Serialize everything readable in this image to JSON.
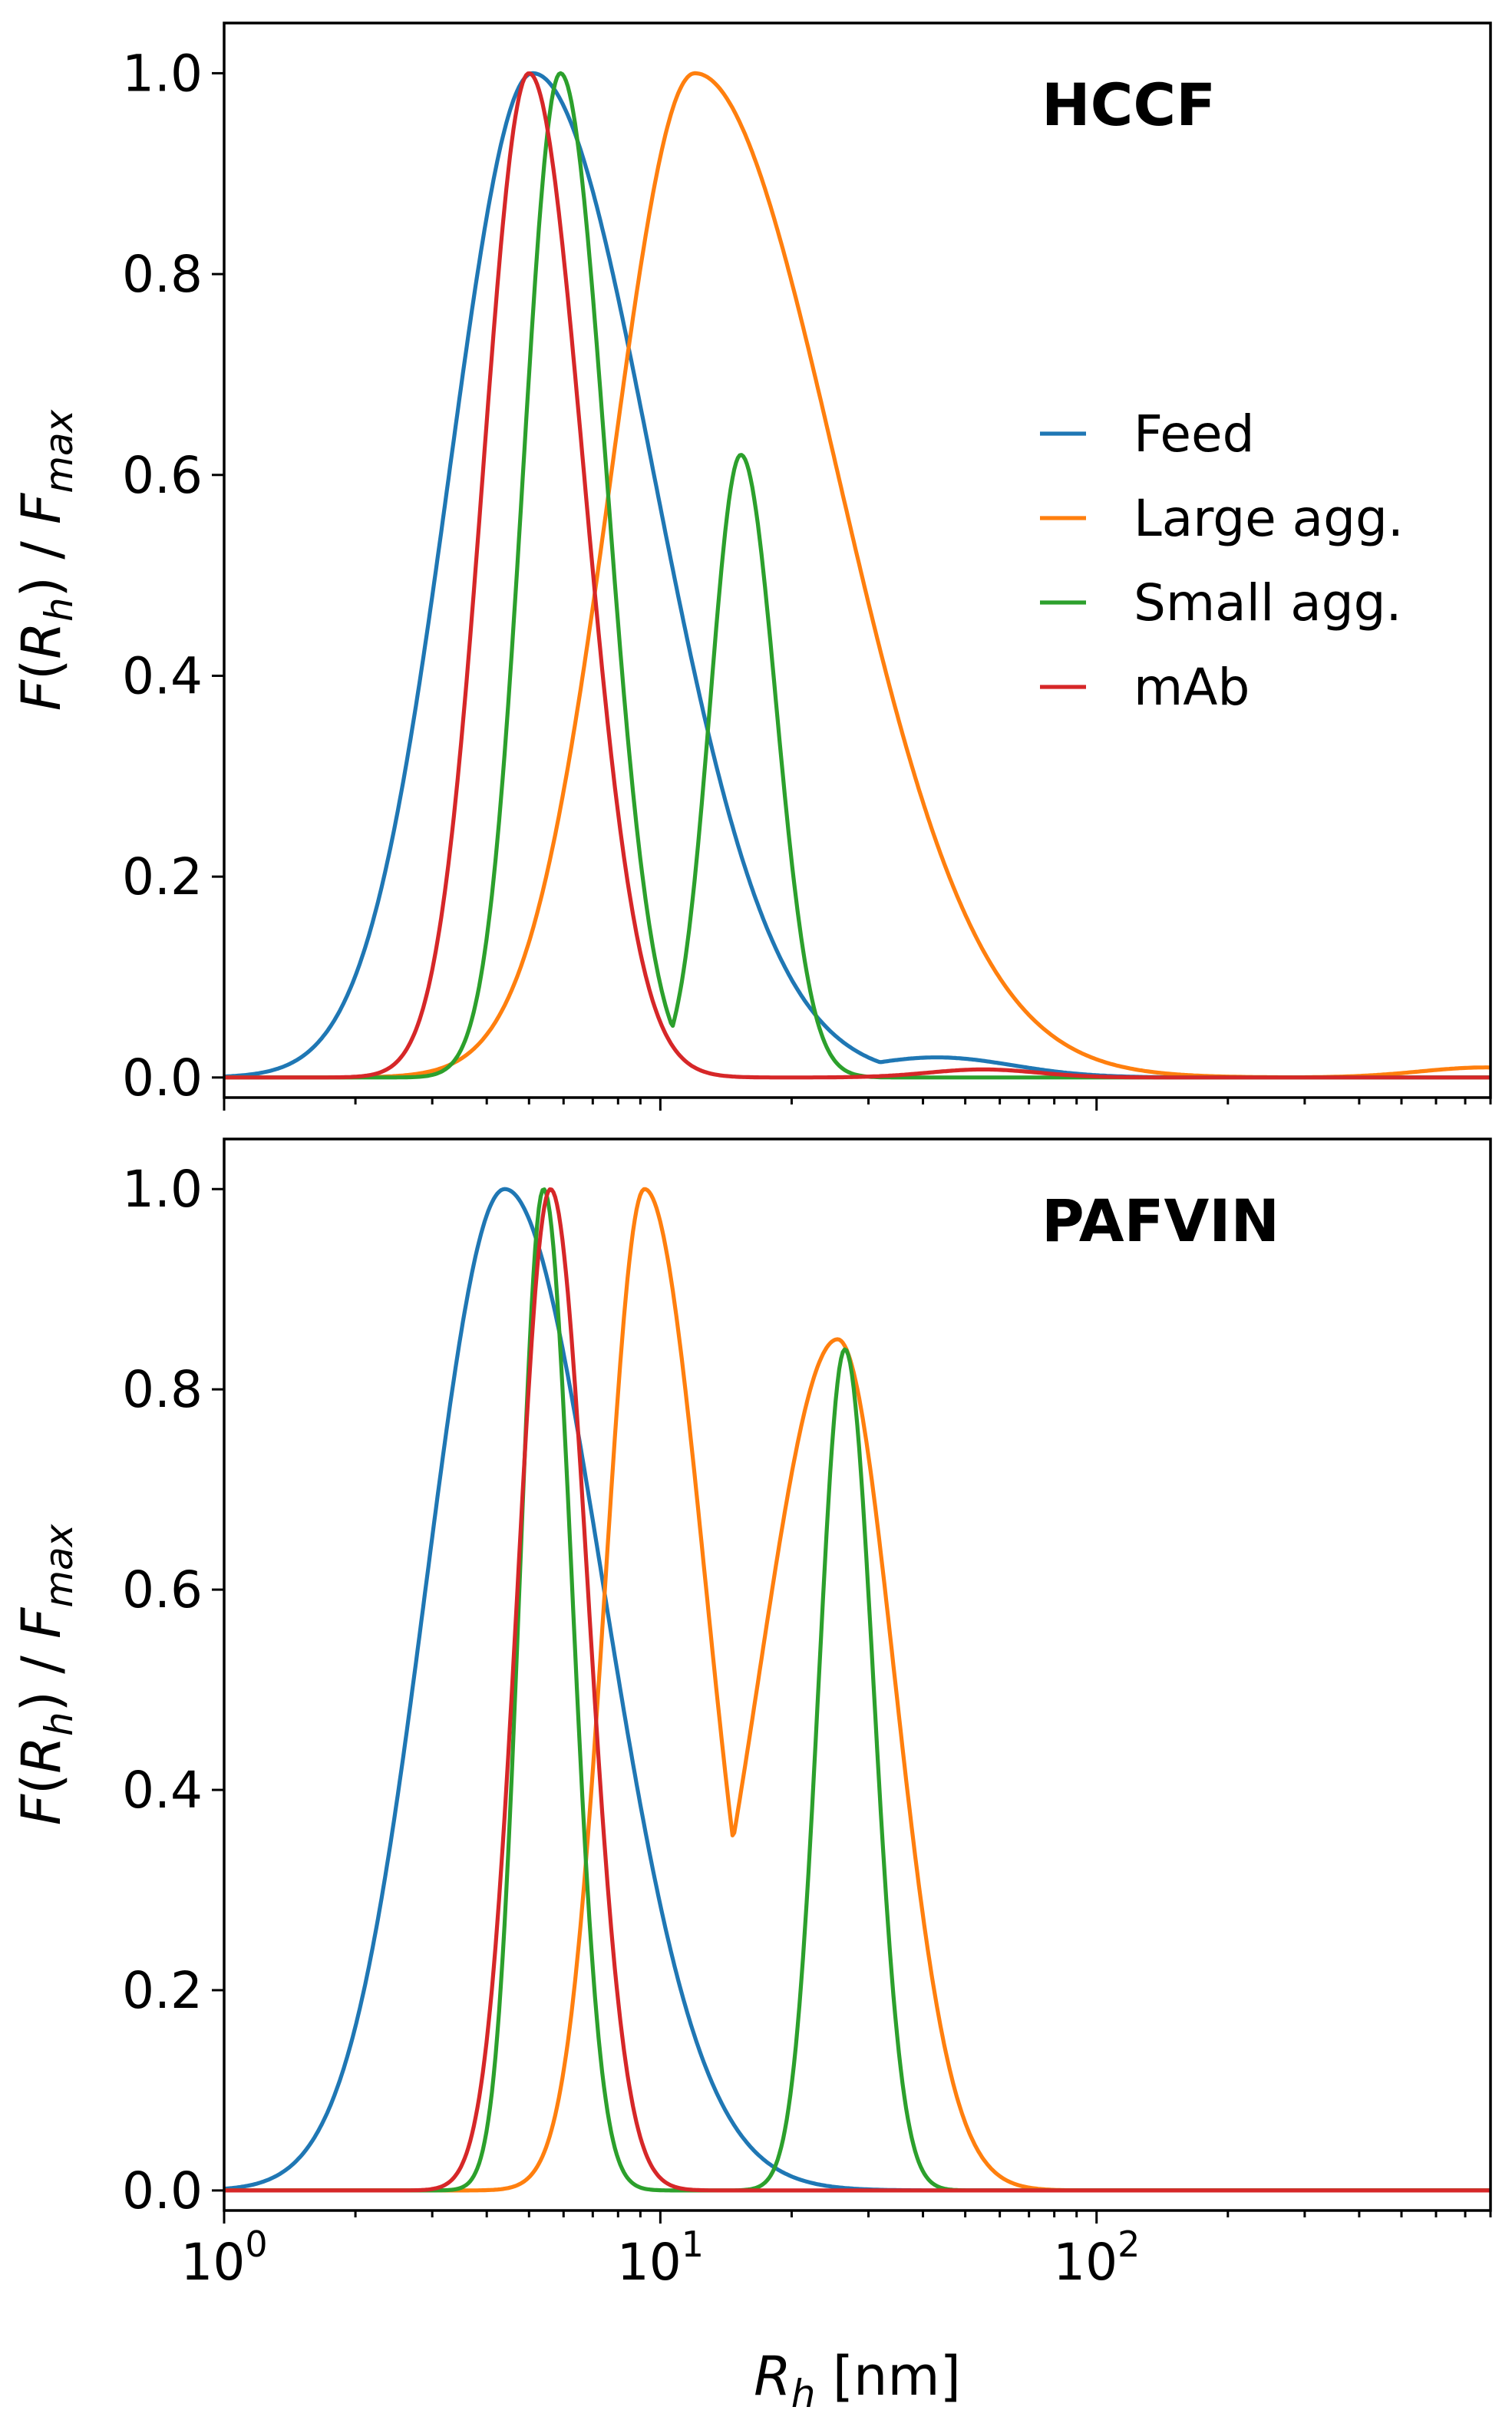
{
  "chart_data": [
    {
      "type": "line",
      "panel": "top",
      "panel_label": "HCCF",
      "ylabel": "F(R_h) / F_max",
      "xlabel": "",
      "xscale": "log",
      "xlim": [
        1,
        800
      ],
      "ylim": [
        -0.02,
        1.05
      ],
      "yticks": [
        "0.0",
        "0.2",
        "0.4",
        "0.6",
        "0.8",
        "1.0"
      ],
      "xticks": [],
      "grid": false,
      "legend": {
        "position": "right",
        "entries": [
          "Feed",
          "Large agg.",
          "Small agg.",
          "mAb"
        ]
      },
      "series": [
        {
          "name": "Feed",
          "color": "#1f77b4",
          "peaks": [
            {
              "mu": 5.1,
              "sigma_up": 0.55,
              "sigma_down": 0.38,
              "amp": 1.0
            },
            {
              "mu": 43,
              "sigma_up": 0.35,
              "sigma_down": 0.35,
              "amp": 0.02
            }
          ]
        },
        {
          "name": "Large agg.",
          "color": "#ff7f0e",
          "peaks": [
            {
              "mu": 12.0,
              "sigma_up": 0.65,
              "sigma_down": 0.38,
              "amp": 1.0
            },
            {
              "mu": 780,
              "sigma_up": 0.3,
              "sigma_down": 0.3,
              "amp": 0.01
            }
          ]
        },
        {
          "name": "Small agg.",
          "color": "#2ca02c",
          "peaks": [
            {
              "mu": 5.9,
              "sigma_up": 0.21,
              "sigma_down": 0.17,
              "amp": 1.0
            },
            {
              "mu": 15.3,
              "sigma_up": 0.16,
              "sigma_down": 0.14,
              "amp": 0.62
            }
          ]
        },
        {
          "name": "mAb",
          "color": "#d62728",
          "peaks": [
            {
              "mu": 5.0,
              "sigma_up": 0.25,
              "sigma_down": 0.21,
              "amp": 1.0
            },
            {
              "mu": 55,
              "sigma_up": 0.25,
              "sigma_down": 0.25,
              "amp": 0.008
            }
          ]
        }
      ]
    },
    {
      "type": "line",
      "panel": "bottom",
      "panel_label": "PAFVIN",
      "ylabel": "F(R_h) / F_max",
      "xlabel": "R_h [nm]",
      "xscale": "log",
      "xlim": [
        1,
        800
      ],
      "ylim": [
        -0.02,
        1.05
      ],
      "yticks": [
        "0.0",
        "0.2",
        "0.4",
        "0.6",
        "0.8",
        "1.0"
      ],
      "xticks": [
        {
          "value": 1,
          "base": "10",
          "exp": "0"
        },
        {
          "value": 10,
          "base": "10",
          "exp": "1"
        },
        {
          "value": 100,
          "base": "10",
          "exp": "2"
        }
      ],
      "grid": false,
      "legend": null,
      "series": [
        {
          "name": "Feed",
          "color": "#1f77b4",
          "peaks": [
            {
              "mu": 4.4,
              "sigma_up": 0.45,
              "sigma_down": 0.36,
              "amp": 1.0
            }
          ]
        },
        {
          "name": "Large agg.",
          "color": "#ff7f0e",
          "peaks": [
            {
              "mu": 9.2,
              "sigma_up": 0.28,
              "sigma_down": 0.18,
              "amp": 1.0
            },
            {
              "mu": 25.5,
              "sigma_up": 0.26,
              "sigma_down": 0.36,
              "amp": 0.85
            }
          ]
        },
        {
          "name": "Small agg.",
          "color": "#2ca02c",
          "peaks": [
            {
              "mu": 5.4,
              "sigma_up": 0.13,
              "sigma_down": 0.11,
              "amp": 1.0
            },
            {
              "mu": 26.5,
              "sigma_up": 0.13,
              "sigma_down": 0.12,
              "amp": 0.84
            }
          ]
        },
        {
          "name": "mAb",
          "color": "#d62728",
          "peaks": [
            {
              "mu": 5.6,
              "sigma_up": 0.17,
              "sigma_down": 0.15,
              "amp": 1.0
            }
          ]
        }
      ]
    }
  ]
}
